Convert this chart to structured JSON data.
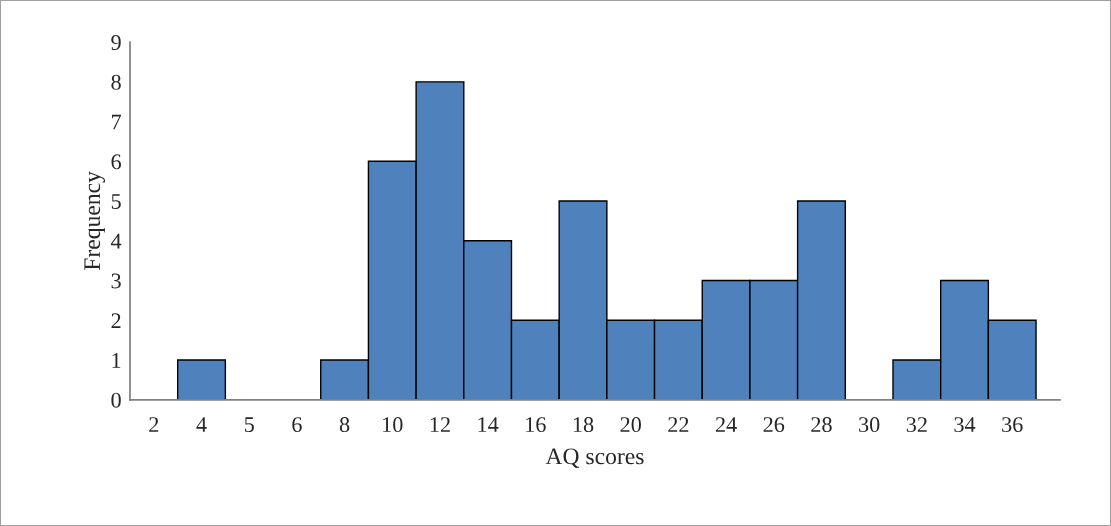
{
  "chart_data": {
    "type": "bar",
    "xlabel": "AQ scores",
    "ylabel": "Frequency",
    "categories": [
      "2",
      "4",
      "5",
      "6",
      "8",
      "10",
      "12",
      "14",
      "16",
      "18",
      "20",
      "22",
      "24",
      "26",
      "28",
      "30",
      "32",
      "34",
      "36"
    ],
    "values": [
      0,
      1,
      0,
      0,
      1,
      6,
      8,
      4,
      2,
      5,
      2,
      2,
      3,
      3,
      5,
      0,
      1,
      3,
      2
    ],
    "color": "#4f81bd",
    "ylim": [
      0,
      9
    ],
    "yticks": [
      0,
      1,
      2,
      3,
      4,
      5,
      6,
      7,
      8,
      9
    ],
    "grid": false,
    "legend": false
  }
}
